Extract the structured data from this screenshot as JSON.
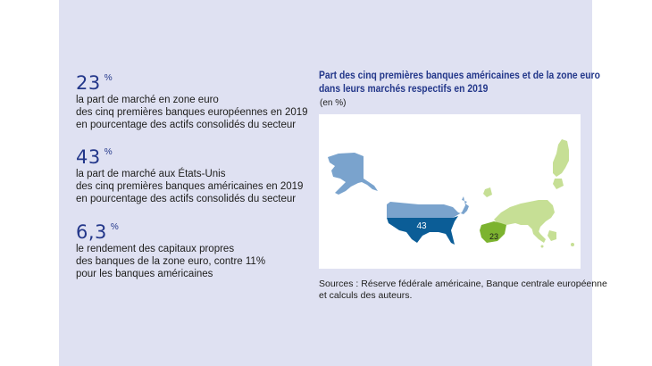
{
  "stats": [
    {
      "value": "23",
      "unit": "%",
      "lines": [
        "la part de marché en zone euro",
        "des cinq premières banques européennes en 2019",
        "en pourcentage des actifs consolidés du secteur"
      ]
    },
    {
      "value": "43",
      "unit": "%",
      "lines": [
        "la part de marché aux États-Unis",
        "des cinq premières banques américaines en 2019",
        "en pourcentage des actifs consolidés du secteur"
      ]
    },
    {
      "value": "6,3",
      "unit": "%",
      "lines": [
        "le rendement des capitaux propres",
        "des banques de la zone euro, contre 11%",
        "pour les banques américaines"
      ]
    }
  ],
  "chart": {
    "title_lines": [
      "Part des cinq premières banques américaines et de la zone euro",
      "dans leurs marchés respectifs en 2019"
    ],
    "unit": "(en %)",
    "map_labels": {
      "usa": "43",
      "euro": "23"
    },
    "colors": {
      "usa_light": "#7aa3cd",
      "usa_dark": "#0b5d97",
      "euro_light": "#c6df95",
      "euro_dark": "#7cb32f"
    }
  },
  "chart_data": {
    "type": "map",
    "categories": [
      "États-Unis",
      "Zone euro"
    ],
    "values": [
      43,
      23
    ],
    "title": "Part des cinq premières banques américaines et de la zone euro dans leurs marchés respectifs en 2019",
    "unit": "en %"
  },
  "sources": [
    "Sources : Réserve fédérale américaine, Banque centrale européenne",
    "et calculs des auteurs."
  ]
}
